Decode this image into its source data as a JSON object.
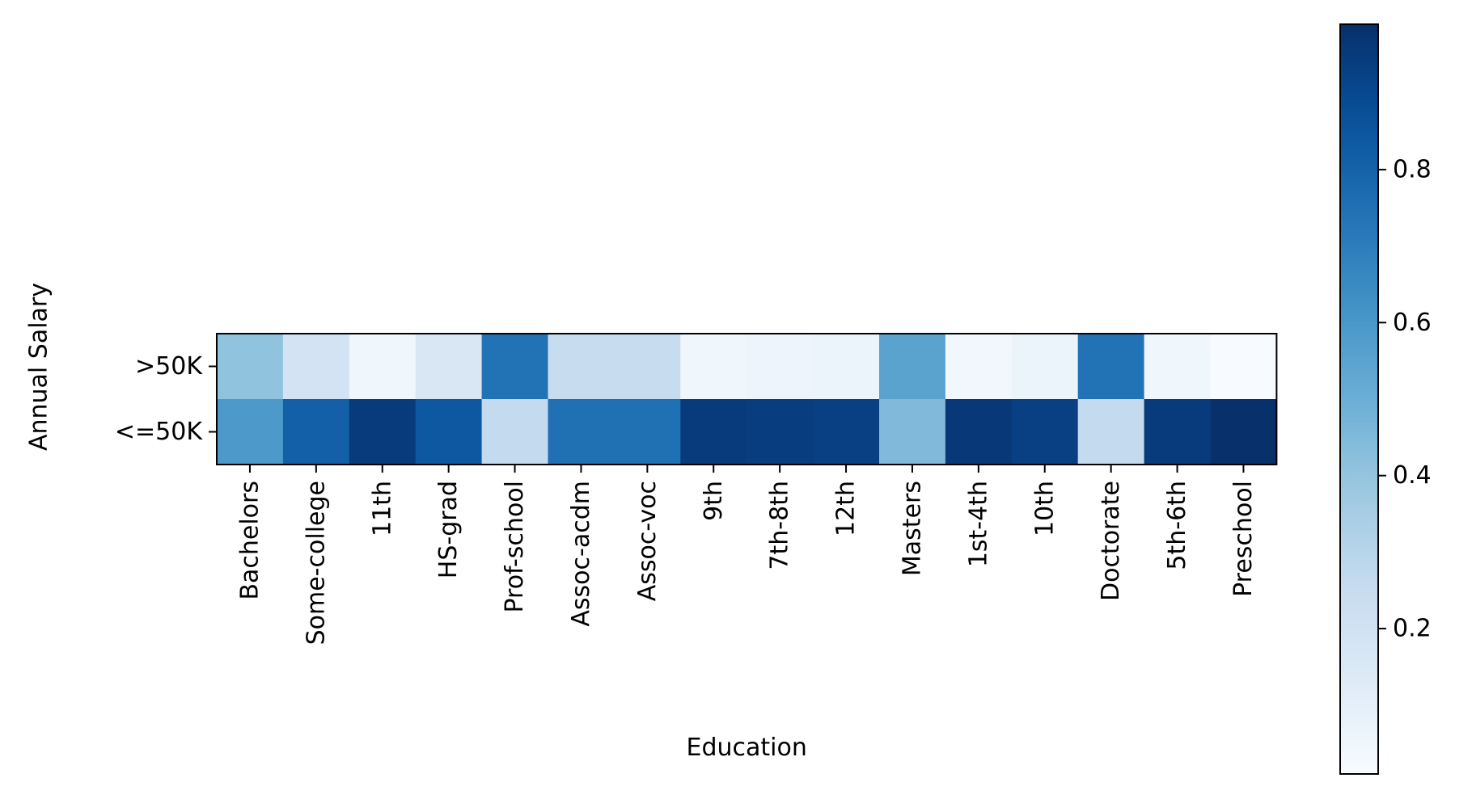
{
  "chart_data": {
    "type": "heatmap",
    "title": "",
    "xlabel": "Education",
    "ylabel": "Annual Salary",
    "x_categories": [
      "Bachelors",
      "Some-college",
      "11th",
      "HS-grad",
      "Prof-school",
      "Assoc-acdm",
      "Assoc-voc",
      "9th",
      "7th-8th",
      "12th",
      "Masters",
      "1st-4th",
      "10th",
      "Doctorate",
      "5th-6th",
      "Preschool"
    ],
    "y_categories": [
      ">50K",
      "<=50K"
    ],
    "values": [
      [
        0.41,
        0.19,
        0.05,
        0.16,
        0.74,
        0.25,
        0.25,
        0.05,
        0.06,
        0.07,
        0.55,
        0.04,
        0.07,
        0.74,
        0.05,
        0.01
      ],
      [
        0.59,
        0.81,
        0.95,
        0.84,
        0.26,
        0.75,
        0.75,
        0.95,
        0.94,
        0.93,
        0.45,
        0.96,
        0.93,
        0.26,
        0.95,
        0.99
      ]
    ],
    "colormap": "Blues",
    "colorbar": {
      "range": [
        0.01,
        0.99
      ],
      "ticks": [
        0.2,
        0.4,
        0.6,
        0.8
      ],
      "tick_labels": [
        "0.2",
        "0.4",
        "0.6",
        "0.8"
      ]
    },
    "grid": false,
    "legend": "colorbar-right"
  }
}
